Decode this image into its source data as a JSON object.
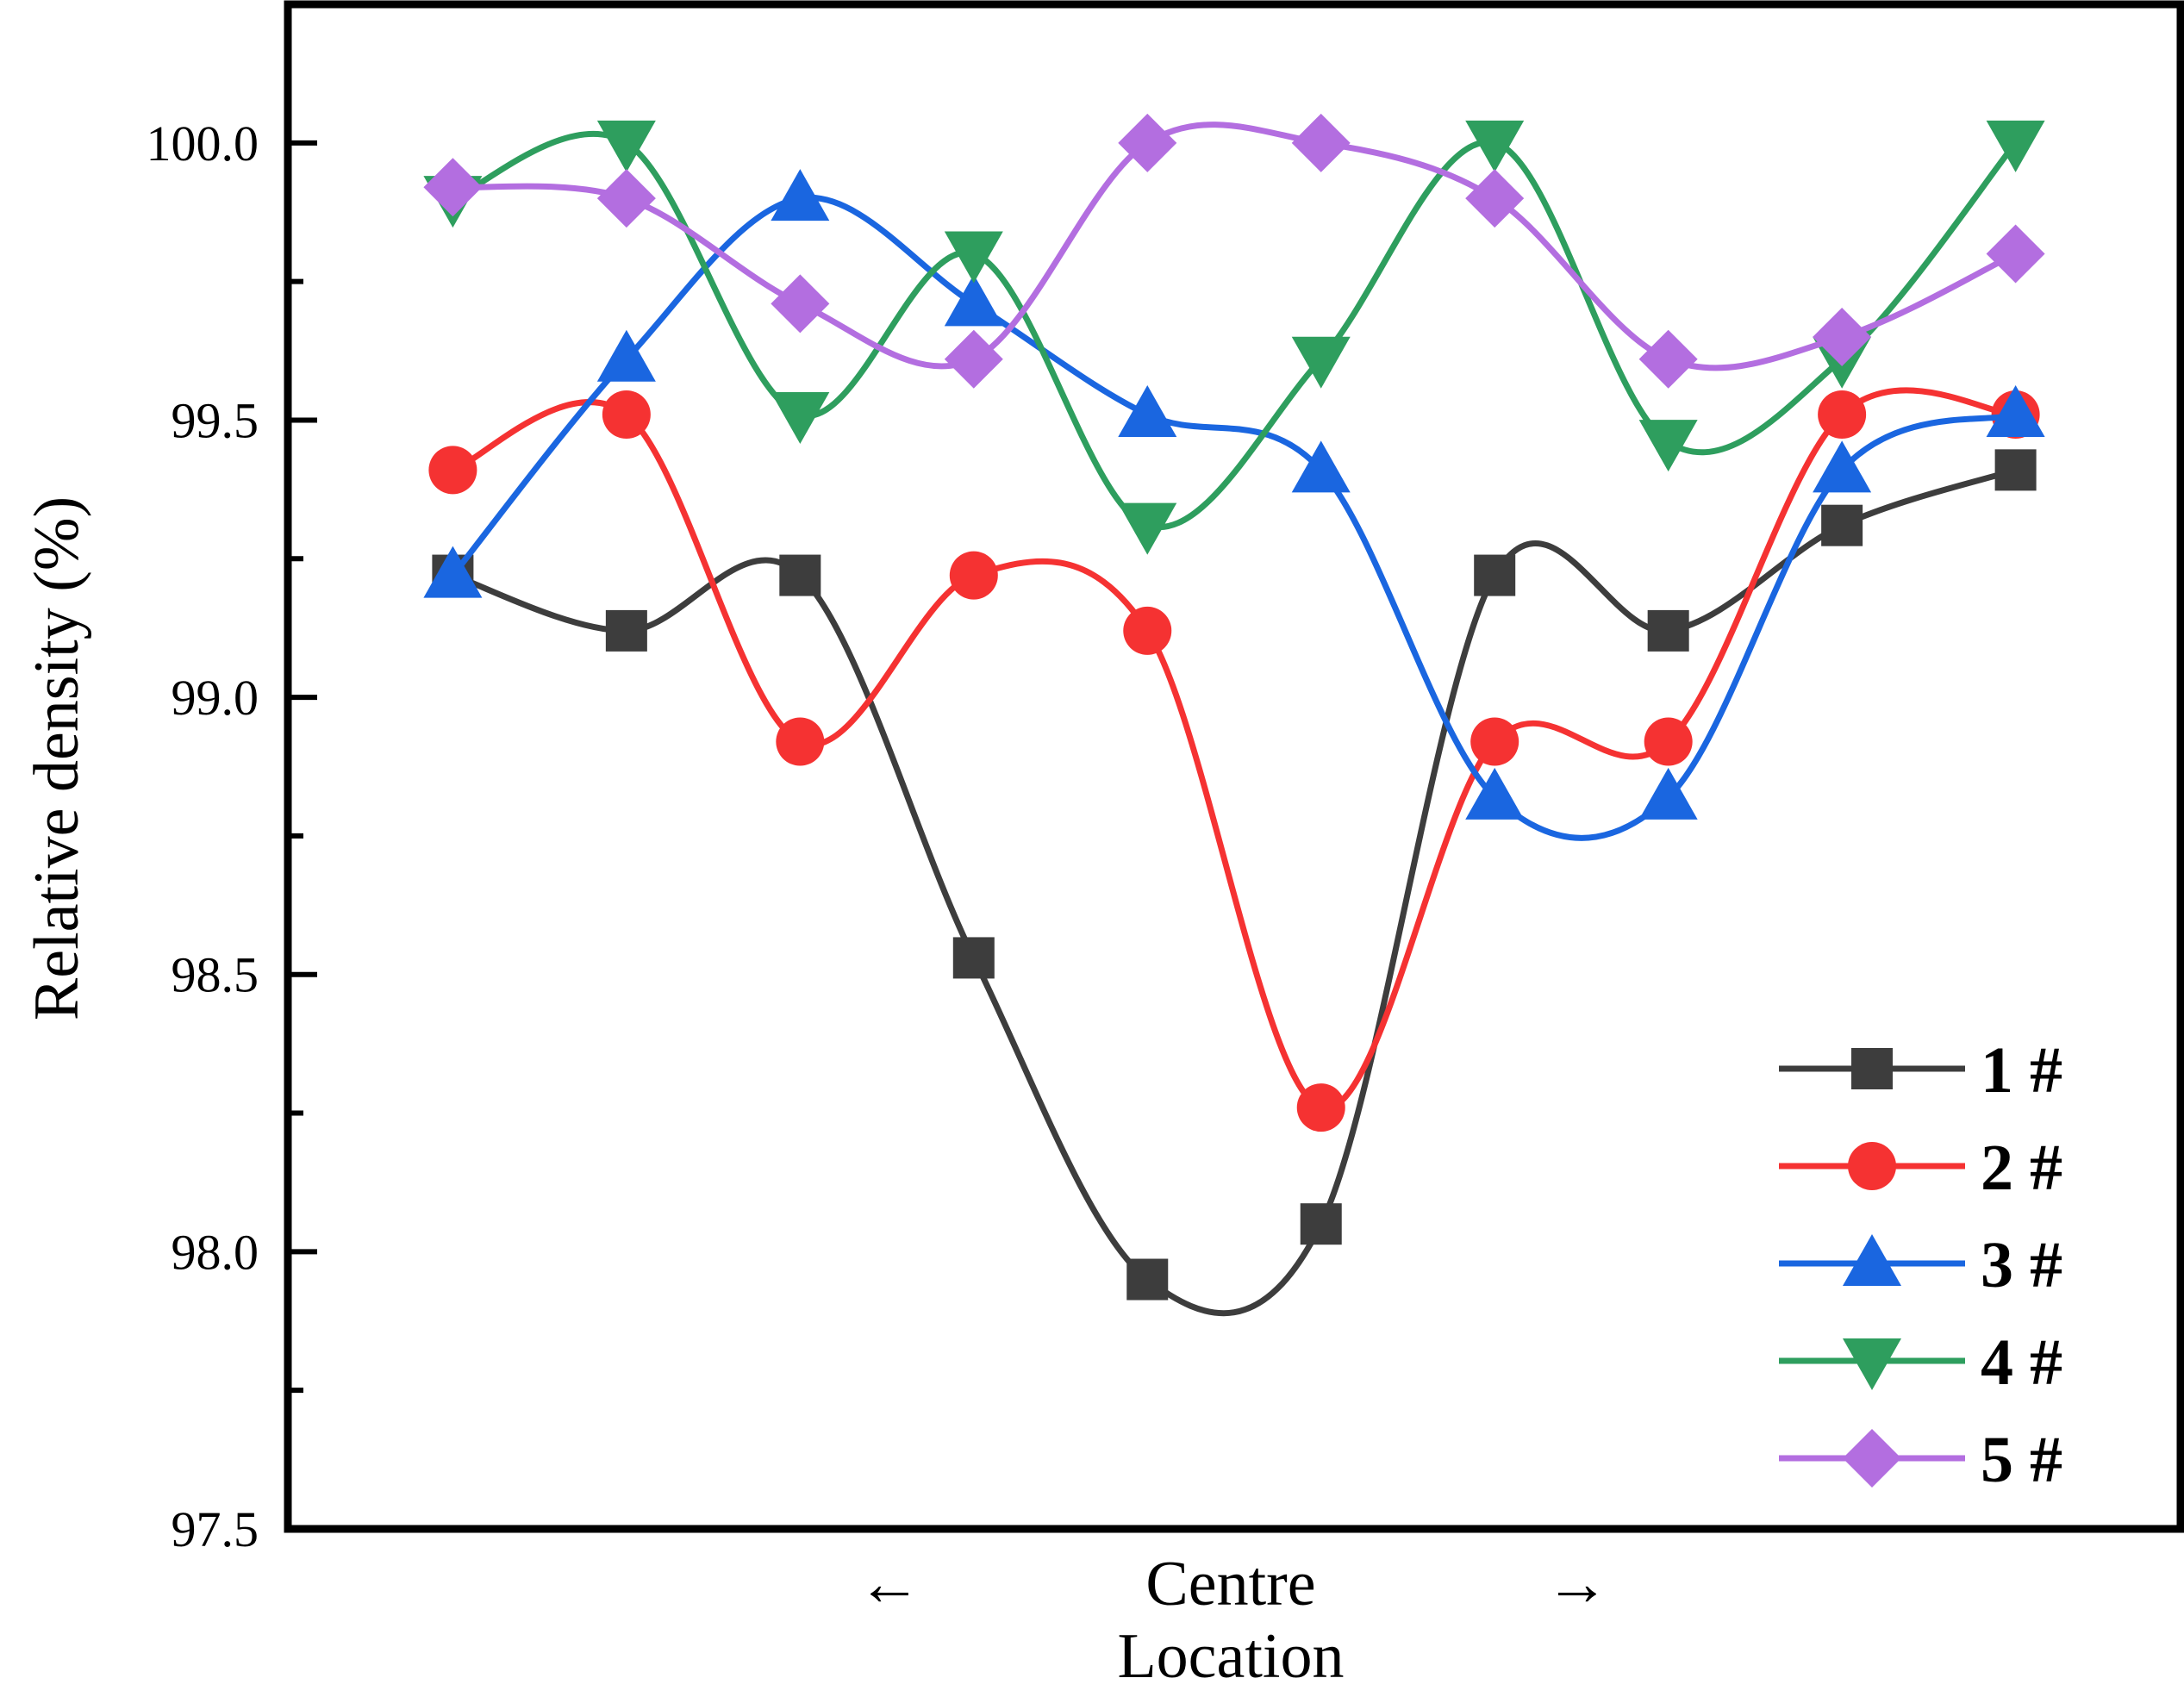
{
  "chart_data": {
    "type": "line",
    "title": "",
    "xlabel": "Location",
    "x_annotation": {
      "left_arrow": "←",
      "center": "Centre",
      "right_arrow": "→"
    },
    "ylabel": "Relative density (%)",
    "ylim": [
      97.5,
      100.25
    ],
    "yticks": [
      "97.5",
      "98.0",
      "98.5",
      "99.0",
      "99.5",
      "100.0"
    ],
    "ytick_values": [
      97.5,
      98.0,
      98.5,
      99.0,
      99.5,
      100.0
    ],
    "x": [
      1,
      2,
      3,
      4,
      5,
      6,
      7,
      8,
      9,
      10
    ],
    "xlim": [
      0.05,
      10.95
    ],
    "grid": false,
    "legend_position": "bottom-right",
    "smooth": true,
    "series": [
      {
        "name": "1 #",
        "marker": "square",
        "color": "#3d3d3d",
        "values": [
          99.22,
          99.12,
          99.22,
          98.53,
          97.95,
          98.05,
          99.22,
          99.12,
          99.31,
          99.41
        ]
      },
      {
        "name": "2 #",
        "marker": "circle",
        "color": "#f53232",
        "values": [
          99.41,
          99.51,
          98.92,
          99.22,
          99.12,
          98.26,
          98.92,
          98.92,
          99.51,
          99.51
        ]
      },
      {
        "name": "3 #",
        "marker": "triangle-up",
        "color": "#1a66e0",
        "values": [
          99.22,
          99.61,
          99.9,
          99.71,
          99.51,
          99.41,
          98.82,
          98.82,
          99.41,
          99.51
        ]
      },
      {
        "name": "4 #",
        "marker": "triangle-down",
        "color": "#2e9e5e",
        "values": [
          99.9,
          100.0,
          99.51,
          99.8,
          99.31,
          99.61,
          100.0,
          99.46,
          99.61,
          100.0
        ]
      },
      {
        "name": "5 #",
        "marker": "diamond",
        "color": "#b36ee0",
        "values": [
          99.92,
          99.9,
          99.71,
          99.61,
          100.0,
          100.0,
          99.9,
          99.61,
          99.65,
          99.8
        ]
      }
    ]
  }
}
